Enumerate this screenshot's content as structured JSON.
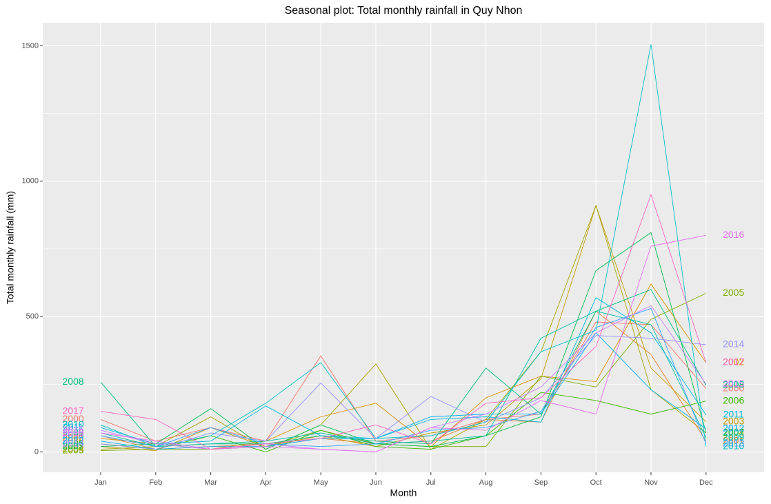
{
  "chart_data": {
    "type": "line",
    "title": "Seasonal plot: Total monthly rainfall in Quy Nhon",
    "x_label": "Month",
    "y_label": "Total monthly rainfall (mm)",
    "categories": [
      "Jan",
      "Feb",
      "Mar",
      "Apr",
      "May",
      "Jun",
      "Jul",
      "Aug",
      "Sep",
      "Oct",
      "Nov",
      "Dec"
    ],
    "ylim": [
      -75,
      1585
    ],
    "yticks": [
      0,
      500,
      1000,
      1500
    ],
    "grid": true,
    "series": [
      {
        "name": "2000",
        "color": "#F8766D",
        "values": [
          120,
          40,
          90,
          40,
          355,
          40,
          60,
          120,
          140,
          480,
          470,
          234
        ]
      },
      {
        "name": "2001",
        "color": "#EA8331",
        "values": [
          60,
          10,
          20,
          30,
          50,
          30,
          40,
          120,
          110,
          520,
          360,
          40
        ]
      },
      {
        "name": "2002",
        "color": "#D89000",
        "values": [
          50,
          30,
          10,
          40,
          130,
          180,
          20,
          200,
          280,
          260,
          620,
          330
        ]
      },
      {
        "name": "2003",
        "color": "#C09B00",
        "values": [
          20,
          5,
          90,
          20,
          60,
          20,
          70,
          100,
          270,
          910,
          310,
          112
        ]
      },
      {
        "name": "2004",
        "color": "#A3A500",
        "values": [
          10,
          20,
          130,
          10,
          100,
          325,
          10,
          120,
          370,
          910,
          230,
          70
        ]
      },
      {
        "name": "2005",
        "color": "#7CAE00",
        "values": [
          5,
          10,
          10,
          20,
          80,
          30,
          20,
          20,
          280,
          240,
          490,
          586
        ]
      },
      {
        "name": "2006",
        "color": "#39B600",
        "values": [
          30,
          10,
          60,
          0,
          80,
          20,
          10,
          60,
          220,
          190,
          140,
          188
        ]
      },
      {
        "name": "2007",
        "color": "#00BB4E",
        "values": [
          20,
          30,
          160,
          10,
          100,
          30,
          20,
          60,
          130,
          670,
          810,
          71
        ]
      },
      {
        "name": "2008",
        "color": "#00BF7D",
        "values": [
          258,
          20,
          30,
          30,
          60,
          40,
          30,
          310,
          140,
          520,
          600,
          246
        ]
      },
      {
        "name": "2009",
        "color": "#00C1A3",
        "values": [
          70,
          20,
          30,
          40,
          70,
          30,
          40,
          60,
          420,
          520,
          470,
          53
        ]
      },
      {
        "name": "2010",
        "color": "#00BFC4",
        "values": [
          100,
          20,
          60,
          180,
          330,
          50,
          60,
          110,
          370,
          450,
          1505,
          20
        ]
      },
      {
        "name": "2011",
        "color": "#00BAE0",
        "values": [
          90,
          30,
          40,
          170,
          60,
          50,
          120,
          130,
          110,
          570,
          440,
          137
        ]
      },
      {
        "name": "2012",
        "color": "#00B0F6",
        "values": [
          40,
          10,
          20,
          20,
          50,
          50,
          130,
          140,
          140,
          440,
          230,
          86
        ]
      },
      {
        "name": "2013",
        "color": "#35A2FF",
        "values": [
          60,
          20,
          90,
          30,
          20,
          30,
          80,
          90,
          150,
          460,
          530,
          30
        ]
      },
      {
        "name": "2014",
        "color": "#9590FF",
        "values": [
          30,
          10,
          70,
          40,
          255,
          50,
          205,
          110,
          200,
          430,
          420,
          396
        ]
      },
      {
        "name": "2015",
        "color": "#C77CFF",
        "values": [
          80,
          30,
          10,
          30,
          10,
          0,
          90,
          140,
          240,
          440,
          540,
          250
        ]
      },
      {
        "name": "2016",
        "color": "#E76BF3",
        "values": [
          70,
          40,
          10,
          20,
          10,
          0,
          90,
          80,
          190,
          140,
          760,
          800
        ]
      },
      {
        "name": "2017",
        "color": "#FF62BC",
        "values": [
          150,
          120,
          10,
          30,
          50,
          100,
          30,
          180,
          200,
          390,
          950,
          330
        ]
      }
    ]
  }
}
